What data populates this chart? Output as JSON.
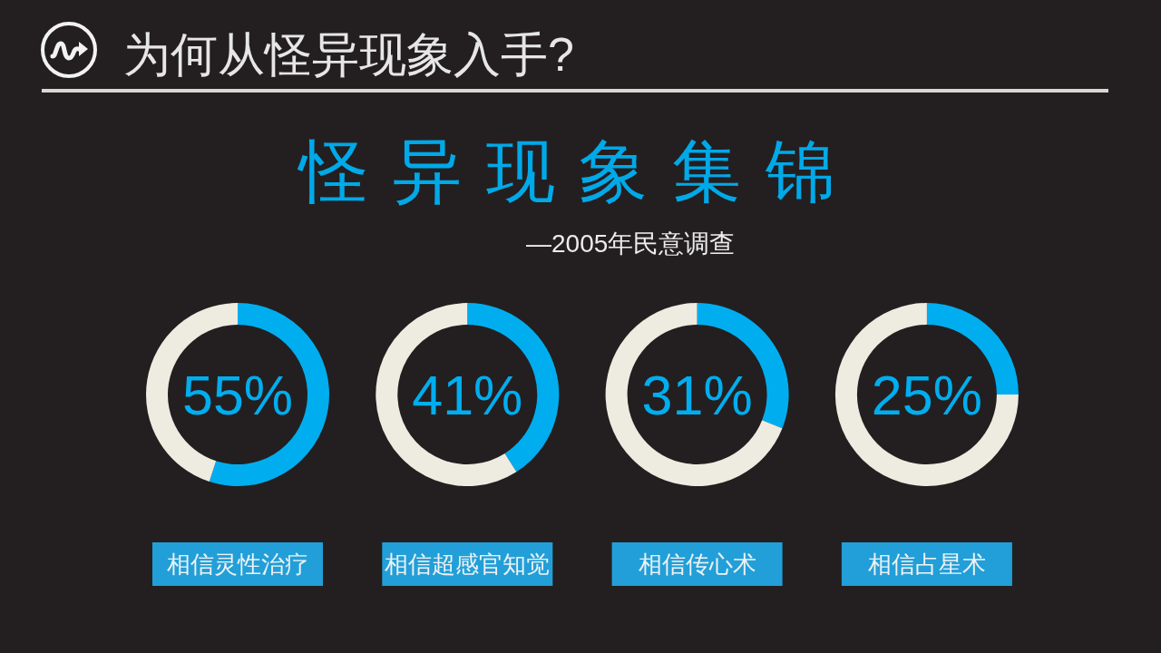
{
  "chart_data": [
    {
      "type": "other",
      "title": "为何从怪异现象入手?",
      "subtitle": "怪异现象集锦",
      "annotations": [
        "—2005年民意调查"
      ]
    },
    {
      "type": "donut",
      "title": "相信灵性治疗",
      "categories": [
        null,
        null
      ],
      "values": [
        55,
        45
      ],
      "colors": [
        "#00aeef",
        "#eeebe1"
      ],
      "annotations": [
        "55%"
      ]
    },
    {
      "type": "donut",
      "title": "相信超感官知觉",
      "categories": [
        null,
        null
      ],
      "values": [
        41,
        59
      ],
      "colors": [
        "#00aeef",
        "#eeebe1"
      ],
      "annotations": [
        "41%"
      ]
    },
    {
      "type": "donut",
      "title": "相信传心术",
      "categories": [
        null,
        null
      ],
      "values": [
        31,
        69
      ],
      "colors": [
        "#00aeef",
        "#eeebe1"
      ],
      "annotations": [
        "31%"
      ]
    },
    {
      "type": "donut",
      "title": "相信占星术",
      "categories": [
        null,
        null
      ],
      "values": [
        25,
        75
      ],
      "colors": [
        "#00aeef",
        "#eeebe1"
      ],
      "annotations": [
        "25%"
      ]
    }
  ]
}
